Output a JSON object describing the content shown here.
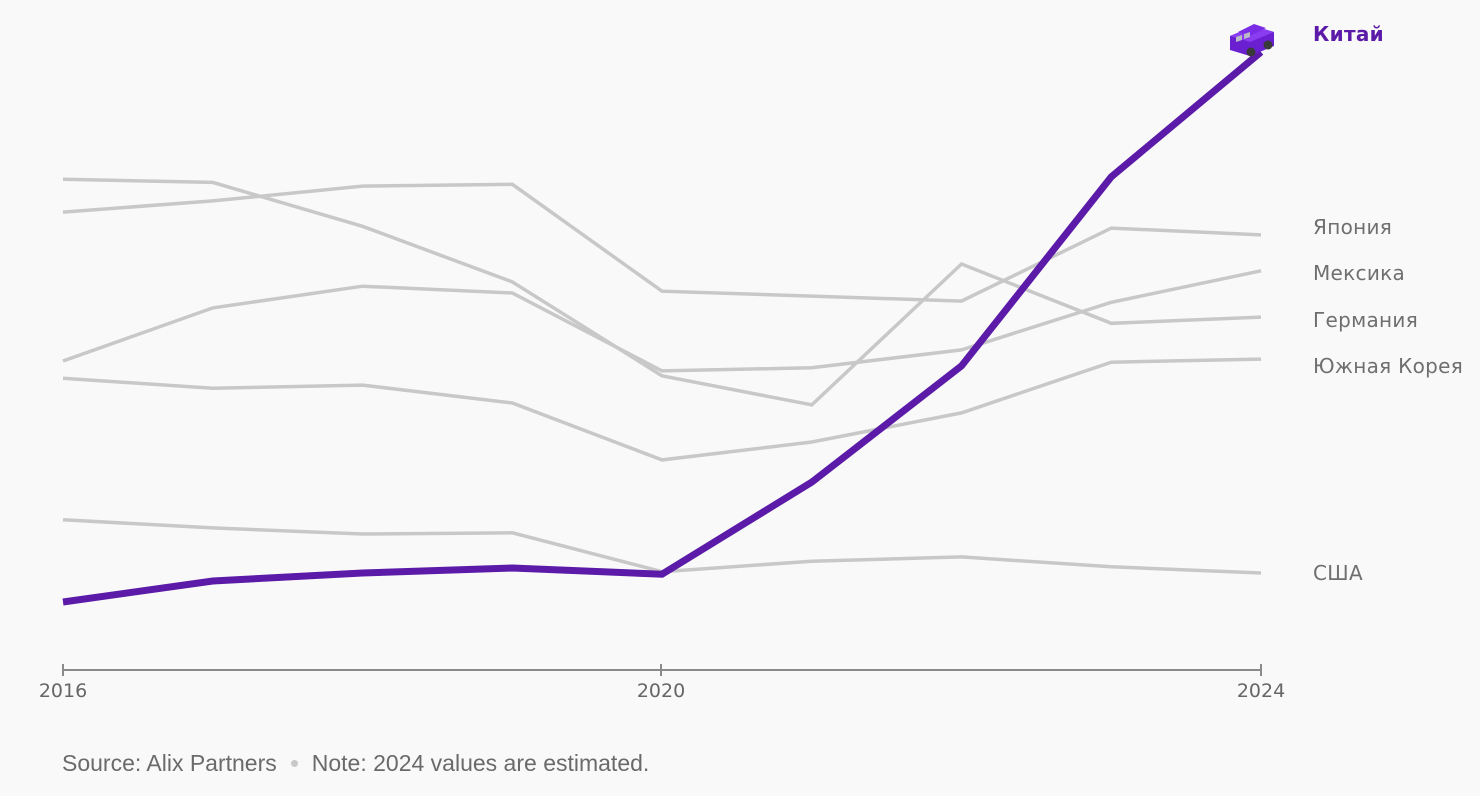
{
  "chart_data": {
    "type": "line",
    "title": "",
    "xlabel": "",
    "ylabel": "",
    "x": [
      2016,
      2017,
      2018,
      2019,
      2020,
      2021,
      2022,
      2023,
      2024
    ],
    "x_ticks": [
      "2016",
      "2020",
      "2024"
    ],
    "ylim": [
      0,
      100
    ],
    "grid": false,
    "legend": "direct-labels-right",
    "highlight_color": "#5b1aa8",
    "muted_color": "#c8c8c8",
    "series": [
      {
        "name": "Япония",
        "highlight": false,
        "values": [
          74.1,
          75.9,
          78.3,
          78.6,
          61.3,
          60.5,
          59.7,
          71.5,
          70.4
        ]
      },
      {
        "name": "Германия",
        "highlight": false,
        "values": [
          79.4,
          78.9,
          71.8,
          62.8,
          47.6,
          42.9,
          65.7,
          56.1,
          57.1
        ]
      },
      {
        "name": "Мексика",
        "highlight": false,
        "values": [
          50.0,
          58.6,
          62.1,
          61.0,
          48.4,
          48.9,
          51.8,
          59.5,
          64.6
        ]
      },
      {
        "name": "Южная Корея",
        "highlight": false,
        "values": [
          47.2,
          45.6,
          46.1,
          43.2,
          34.0,
          36.9,
          41.6,
          49.8,
          50.3
        ]
      },
      {
        "name": "США",
        "highlight": false,
        "values": [
          24.3,
          23.0,
          22.0,
          22.2,
          15.9,
          17.6,
          18.3,
          16.7,
          15.7
        ]
      },
      {
        "name": "Китай",
        "highlight": true,
        "values": [
          11.0,
          14.4,
          15.7,
          16.5,
          15.5,
          30.4,
          49.2,
          79.8,
          100.0
        ]
      }
    ]
  },
  "labels": {
    "china": "Китай",
    "japan": "Япония",
    "mexico": "Мексика",
    "germany": "Германия",
    "south_korea": "Южная Корея",
    "usa": "США"
  },
  "footer": {
    "source": "Source: Alix Partners",
    "note": "Note: 2024 values are estimated."
  },
  "icons": {
    "endpoint_marker": "car-icon"
  }
}
